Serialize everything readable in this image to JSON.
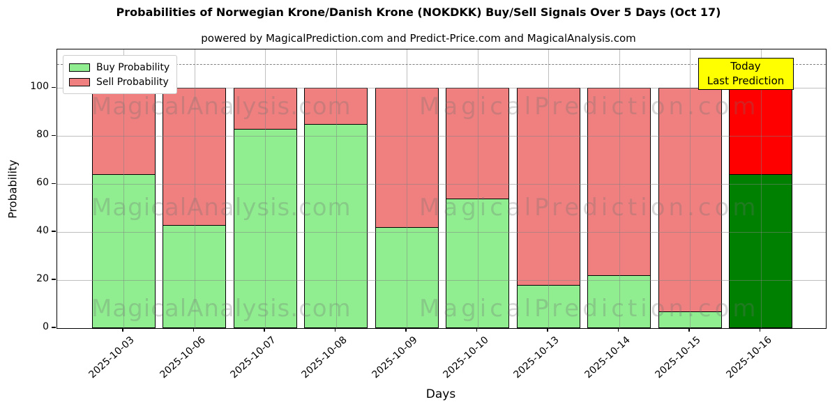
{
  "title": "Probabilities of Norwegian Krone/Danish Krone (NOKDKK) Buy/Sell Signals Over 5 Days (Oct 17)",
  "subtitle": "powered by MagicalPrediction.com and Predict-Price.com and MagicalAnalysis.com",
  "axes": {
    "xlabel": "Days",
    "ylabel": "Probability"
  },
  "legend": {
    "items": [
      {
        "label": "Buy Probability",
        "color": "#90ee90"
      },
      {
        "label": "Sell Probability",
        "color": "#f08080"
      }
    ]
  },
  "annotation": {
    "line1": "Today",
    "line2": "Last Prediction",
    "bg_color": "#ffff00"
  },
  "watermark": {
    "left_text": "MagicalAnalysis.com",
    "right_text": "MagicalPrediction.com"
  },
  "colors": {
    "buy": "#90ee90",
    "sell": "#f08080",
    "buy_today": "#008000",
    "sell_today": "#ff0000",
    "bar_edge": "#000000",
    "grid": "#b0b0b0",
    "dashed_line": "#7f7f7f",
    "annotation_bg": "#ffff00"
  },
  "chart_data": {
    "type": "bar",
    "stacked": true,
    "title": "Probabilities of Norwegian Krone/Danish Krone (NOKDKK) Buy/Sell Signals Over 5 Days (Oct 17)",
    "xlabel": "Days",
    "ylabel": "Probability",
    "categories": [
      "2025-10-03",
      "2025-10-06",
      "2025-10-07",
      "2025-10-08",
      "2025-10-09",
      "2025-10-10",
      "2025-10-13",
      "2025-10-14",
      "2025-10-15",
      "2025-10-16"
    ],
    "series": [
      {
        "name": "Buy Probability",
        "color": "#90ee90",
        "today_color": "#008000",
        "values": [
          64,
          43,
          83,
          85,
          42,
          54,
          18,
          22,
          7,
          64
        ]
      },
      {
        "name": "Sell Probability",
        "color": "#f08080",
        "today_color": "#ff0000",
        "values": [
          36,
          57,
          17,
          15,
          58,
          46,
          82,
          78,
          93,
          36
        ]
      }
    ],
    "today_index": 9,
    "yticks": [
      0,
      20,
      40,
      60,
      80,
      100
    ],
    "ylim": [
      0,
      116
    ],
    "dashed_line_y": 110,
    "grid": true,
    "legend_position": "upper left"
  }
}
